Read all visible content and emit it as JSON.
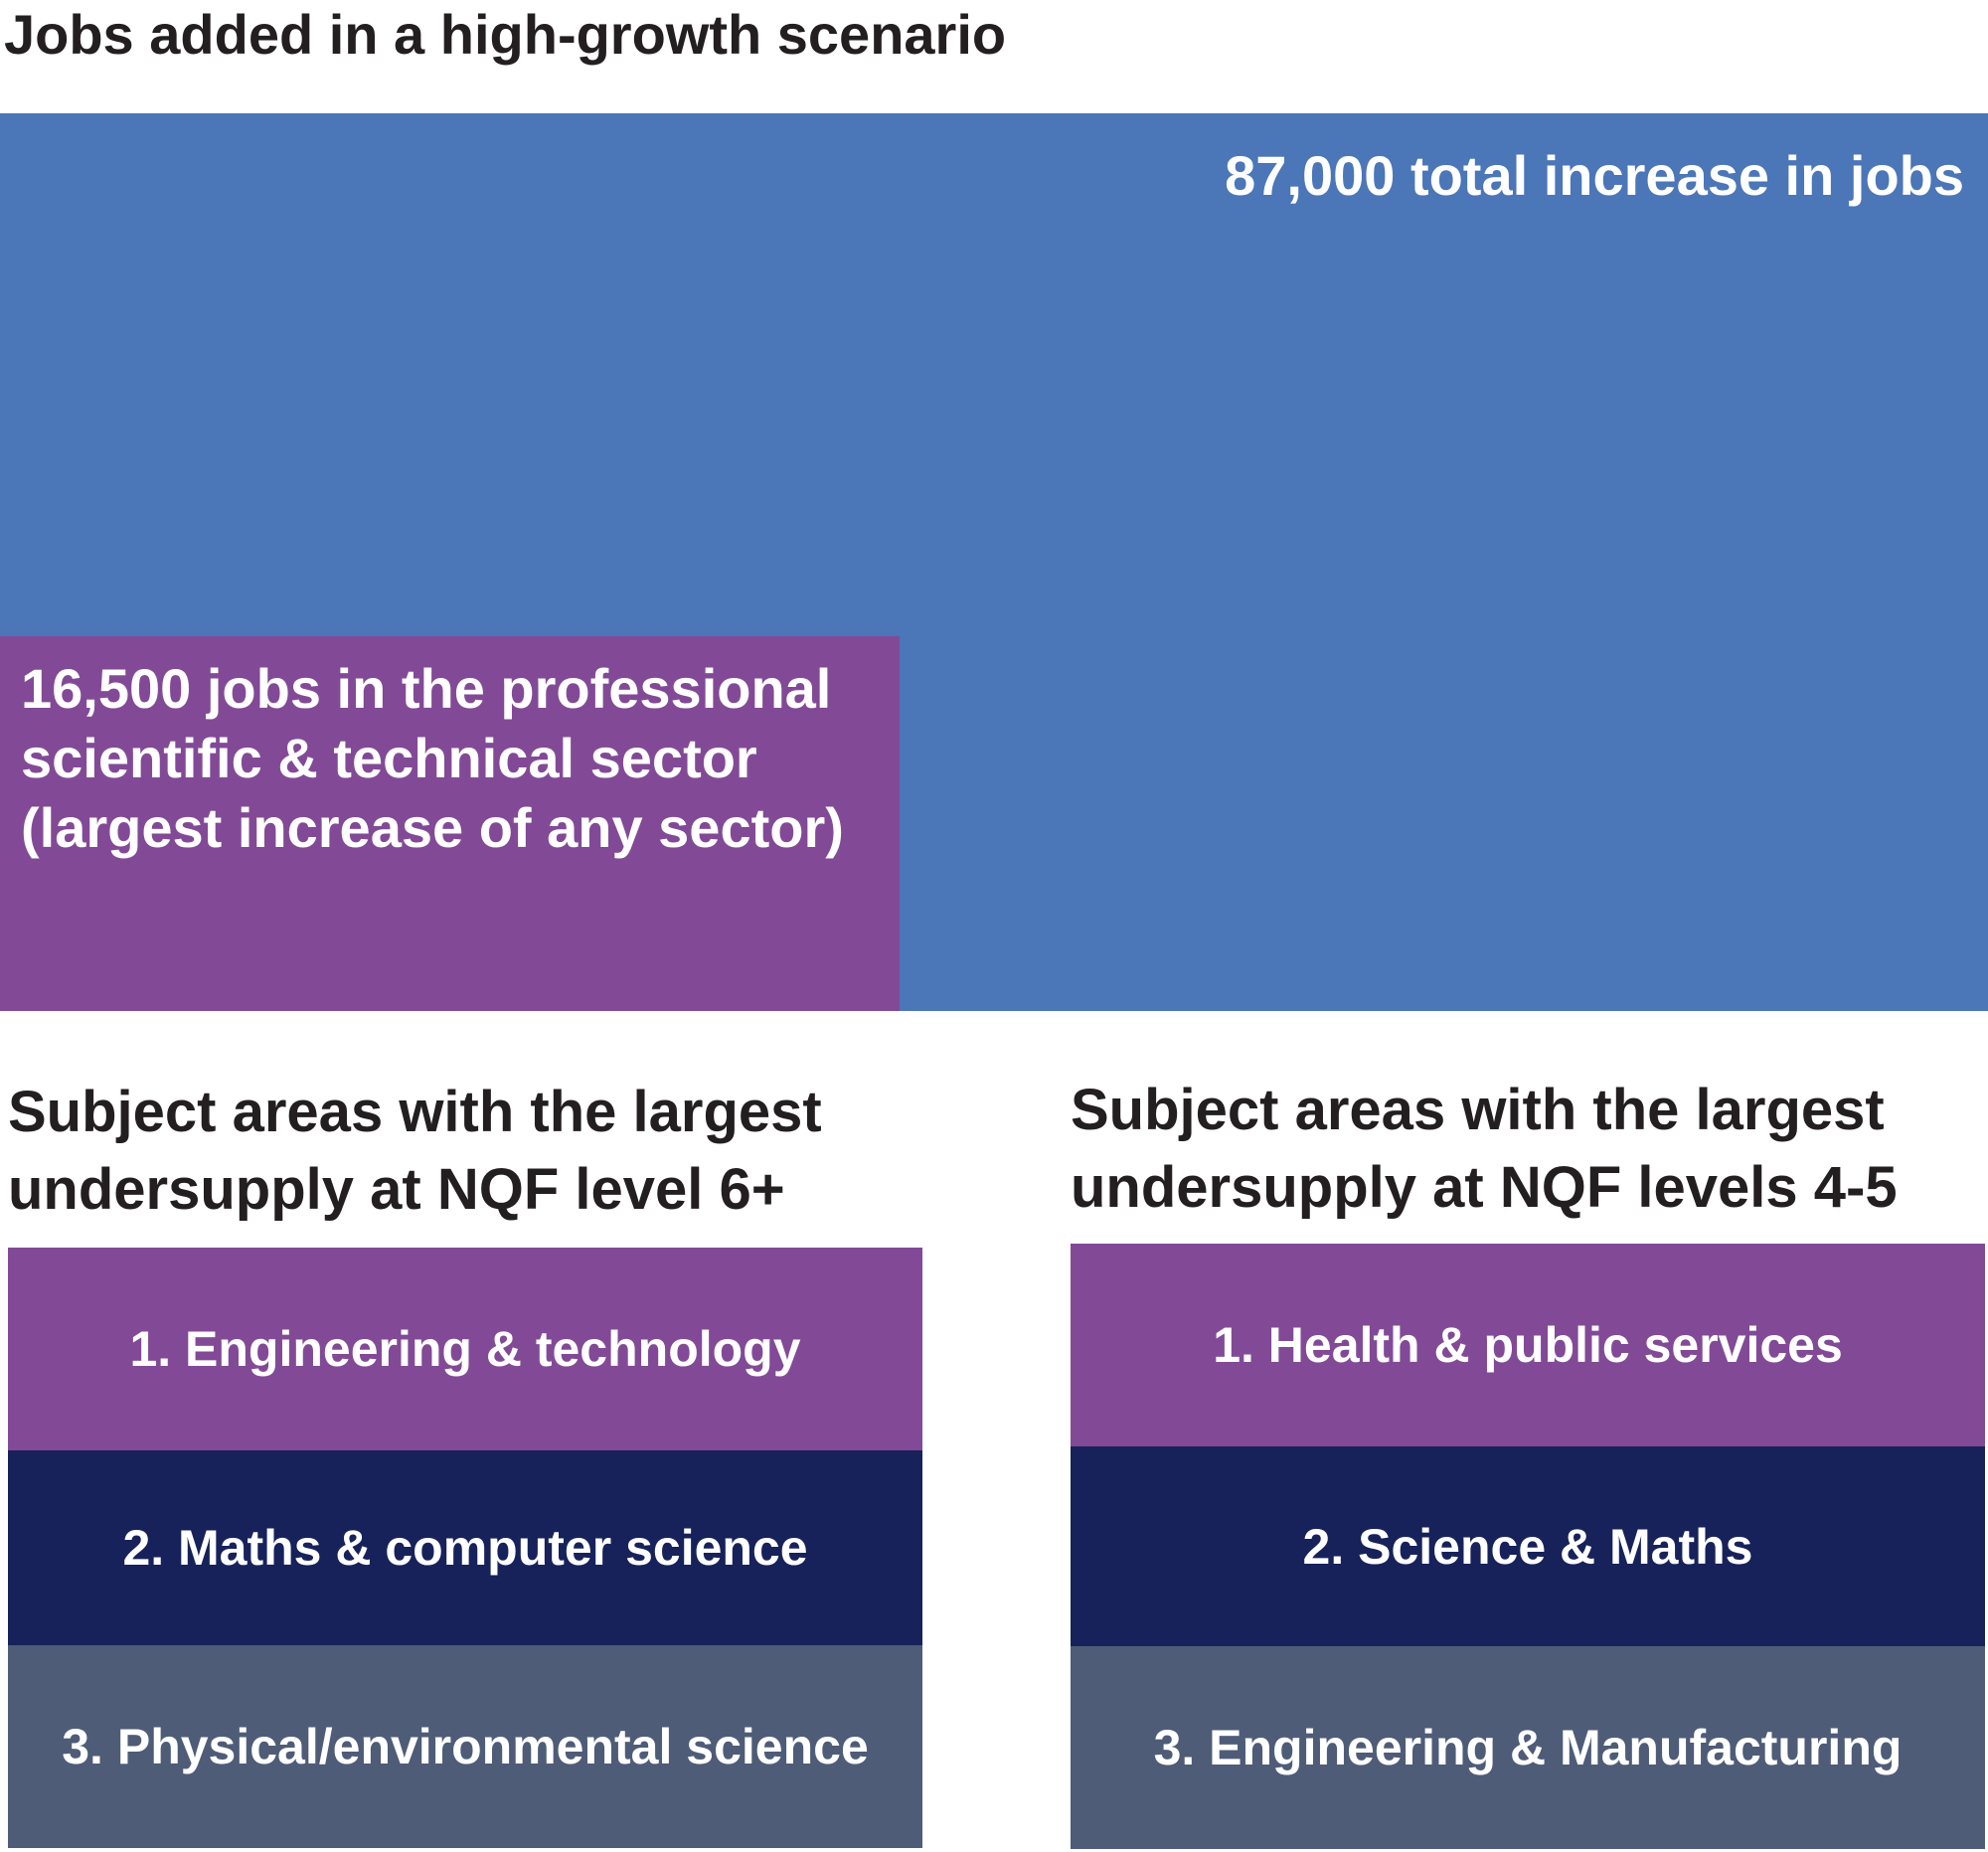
{
  "title": "Jobs added in a high-growth scenario",
  "colors": {
    "total": "#4b76b8",
    "sector": "#824a96",
    "rank_1": "#824a96",
    "rank_2": "#17225b",
    "rank_3": "#4e5c78",
    "text_dark": "#231f20",
    "text_light": "#ffffff"
  },
  "chart_data": {
    "type": "area",
    "title": "Jobs added in a high-growth scenario",
    "total": {
      "value": 87000,
      "label": "87,000 total increase in jobs"
    },
    "subset": {
      "value": 16500,
      "label": "16,500 jobs in the professional scientific & technical sector (largest increase of any sector)"
    }
  },
  "panels": [
    {
      "heading": "Subject areas with the largest undersupply at NQF level 6+",
      "items": [
        "1. Engineering & technology",
        "2. Maths & computer science",
        "3. Physical/environmental science"
      ]
    },
    {
      "heading": "Subject areas with the largest undersupply at NQF levels 4-5",
      "items": [
        "1. Health & public services",
        "2. Science & Maths",
        "3. Engineering & Manufacturing"
      ]
    }
  ]
}
